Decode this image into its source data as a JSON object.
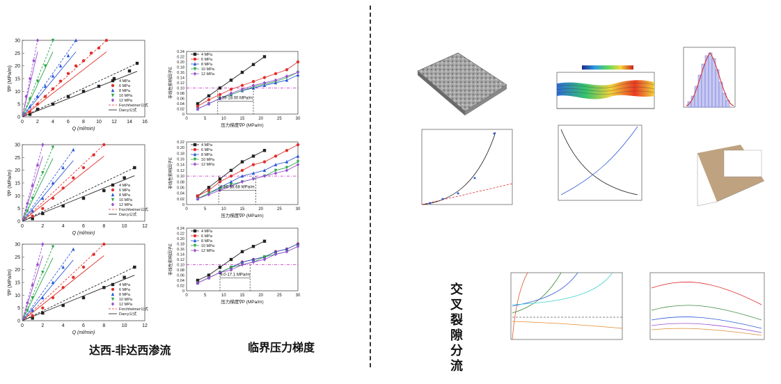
{
  "labels": {
    "left_caption": "达西-非达西渗流",
    "middle_caption": "临界压力梯度",
    "right_title": "交叉裂隙分流"
  },
  "legend_flow": [
    "4 MPa",
    "6 MPa",
    "8 MPa",
    "10 MPa",
    "12 MPa",
    "Forchheimer公式",
    "Darcy公式"
  ],
  "legend_crit": [
    "4 MPa",
    "6 MPa",
    "8 MPa",
    "10 MPa",
    "12 MPa"
  ],
  "colors": {
    "4": "#222222",
    "6": "#e0302c",
    "8": "#2a56d6",
    "10": "#2aa64a",
    "12": "#9a4fd0"
  },
  "flow_axes": {
    "ylabel": "∇P (MPa/m)",
    "xlabel": "Q (ml/min)",
    "yticks": [
      "0",
      "5",
      "10",
      "15",
      "20",
      "25",
      "30"
    ]
  },
  "flow_xticks": [
    [
      "0",
      "2",
      "4",
      "6",
      "8",
      "10",
      "12",
      "14",
      "16"
    ],
    [
      "0",
      "2",
      "4",
      "6",
      "8",
      "10",
      "12"
    ],
    [
      "0",
      "2",
      "4",
      "6",
      "8",
      "10",
      "12"
    ]
  ],
  "crit_axes": {
    "ylabel": "非线性影响因子E",
    "xlabel": "压力梯度∇P (MPa/m)",
    "xticks": [
      "0",
      "5",
      "10",
      "15",
      "20",
      "25",
      "30"
    ],
    "yticks": [
      "0",
      "0.02",
      "0.04",
      "0.06",
      "0.08",
      "0.10",
      "0.12",
      "0.14",
      "0.16",
      "0.18",
      "0.20",
      "0.22",
      "0.24"
    ]
  },
  "crit_ranges": [
    "8.39-18.00 MPa/m",
    "8.66-18.68 MPa/m",
    "9.0-17.1 MPa/m"
  ],
  "chart_data": [
    {
      "type": "line",
      "title": "",
      "xlabel": "Q (ml/min)",
      "ylabel": "∇P (MPa/m)",
      "xlim": [
        0,
        16
      ],
      "ylim": [
        0,
        30
      ],
      "series": [
        {
          "name": "4 MPa",
          "x": [
            1,
            2,
            4,
            6,
            8,
            10,
            12,
            14,
            15
          ],
          "y": [
            1,
            3,
            5,
            8,
            10,
            12,
            15,
            18,
            21
          ]
        },
        {
          "name": "6 MPa",
          "x": [
            1,
            2,
            3,
            4,
            5,
            6,
            7,
            8,
            9,
            10,
            11
          ],
          "y": [
            2,
            5,
            8,
            11,
            14,
            17,
            20,
            22,
            25,
            27,
            30
          ]
        },
        {
          "name": "8 MPa",
          "x": [
            1,
            2,
            3,
            4,
            5,
            6,
            7
          ],
          "y": [
            4,
            8,
            12,
            16,
            20,
            24,
            30
          ]
        },
        {
          "name": "10 MPa",
          "x": [
            1,
            2,
            3,
            4
          ],
          "y": [
            7,
            14,
            20,
            30
          ]
        },
        {
          "name": "12 MPa",
          "x": [
            0.5,
            1,
            1.5,
            2
          ],
          "y": [
            8,
            15,
            22,
            30
          ]
        }
      ]
    },
    {
      "type": "line",
      "title": "",
      "xlabel": "Q (ml/min)",
      "ylabel": "∇P (MPa/m)",
      "xlim": [
        0,
        12
      ],
      "ylim": [
        0,
        30
      ],
      "series": [
        {
          "name": "4 MPa",
          "x": [
            1,
            2,
            4,
            6,
            8,
            10,
            11
          ],
          "y": [
            1,
            3,
            6,
            9,
            12,
            17,
            21
          ]
        },
        {
          "name": "6 MPa",
          "x": [
            1,
            2,
            3,
            4,
            5,
            6,
            7,
            8
          ],
          "y": [
            2,
            5,
            9,
            13,
            17,
            21,
            26,
            30
          ]
        },
        {
          "name": "8 MPa",
          "x": [
            1,
            2,
            3,
            4,
            5
          ],
          "y": [
            4,
            9,
            15,
            21,
            28
          ]
        },
        {
          "name": "10 MPa",
          "x": [
            0.5,
            1,
            2,
            3
          ],
          "y": [
            4,
            9,
            19,
            29
          ]
        },
        {
          "name": "12 MPa",
          "x": [
            0.5,
            1,
            1.5,
            2
          ],
          "y": [
            7,
            14,
            22,
            30
          ]
        }
      ]
    },
    {
      "type": "line",
      "title": "",
      "xlabel": "Q (ml/min)",
      "ylabel": "∇P (MPa/m)",
      "xlim": [
        0,
        12
      ],
      "ylim": [
        0,
        30
      ],
      "series": [
        {
          "name": "4 MPa",
          "x": [
            1,
            2,
            4,
            6,
            8,
            10,
            11
          ],
          "y": [
            1,
            3,
            6,
            9,
            13,
            17,
            21
          ]
        },
        {
          "name": "6 MPa",
          "x": [
            1,
            2,
            3,
            4,
            5,
            6,
            7,
            8
          ],
          "y": [
            2,
            5,
            9,
            13,
            17,
            21,
            26,
            30
          ]
        },
        {
          "name": "8 MPa",
          "x": [
            1,
            2,
            3,
            4,
            5
          ],
          "y": [
            4,
            9,
            15,
            21,
            28
          ]
        },
        {
          "name": "10 MPa",
          "x": [
            0.5,
            1,
            2,
            3
          ],
          "y": [
            4,
            9,
            19,
            29
          ]
        },
        {
          "name": "12 MPa",
          "x": [
            0.5,
            1,
            1.5,
            2
          ],
          "y": [
            7,
            14,
            22,
            30
          ]
        }
      ]
    },
    {
      "type": "line",
      "title": "",
      "xlabel": "压力梯度∇P (MPa/m)",
      "ylabel": "非线性影响因子E",
      "xlim": [
        0,
        30
      ],
      "ylim": [
        0,
        0.24
      ],
      "series": [
        {
          "name": "4 MPa",
          "x": [
            3,
            6,
            9,
            12,
            15,
            18,
            21
          ],
          "y": [
            0.04,
            0.07,
            0.1,
            0.13,
            0.16,
            0.19,
            0.22
          ]
        },
        {
          "name": "6 MPa",
          "x": [
            3,
            6,
            9,
            12,
            15,
            18,
            21,
            24,
            27,
            30
          ],
          "y": [
            0.03,
            0.055,
            0.075,
            0.095,
            0.11,
            0.125,
            0.14,
            0.155,
            0.17,
            0.2
          ]
        },
        {
          "name": "8 MPa",
          "x": [
            3,
            6,
            9,
            12,
            15,
            18,
            21,
            24,
            27,
            30
          ],
          "y": [
            0.02,
            0.04,
            0.06,
            0.075,
            0.09,
            0.1,
            0.11,
            0.12,
            0.13,
            0.15
          ]
        },
        {
          "name": "10 MPa",
          "x": [
            3,
            6,
            9,
            12,
            15,
            18,
            21,
            24,
            27,
            30
          ],
          "y": [
            0.02,
            0.04,
            0.06,
            0.075,
            0.09,
            0.105,
            0.115,
            0.125,
            0.14,
            0.16
          ]
        },
        {
          "name": "12 MPa",
          "x": [
            3,
            6,
            9,
            12,
            15,
            18,
            21,
            24,
            27,
            30
          ],
          "y": [
            0.02,
            0.04,
            0.06,
            0.08,
            0.095,
            0.11,
            0.12,
            0.13,
            0.145,
            0.16
          ]
        }
      ]
    },
    {
      "type": "line",
      "title": "",
      "xlabel": "压力梯度∇P (MPa/m)",
      "ylabel": "非线性影响因子E",
      "xlim": [
        0,
        30
      ],
      "ylim": [
        0,
        0.22
      ],
      "series": [
        {
          "name": "4 MPa",
          "x": [
            3,
            6,
            9,
            12,
            15,
            18,
            21
          ],
          "y": [
            0.03,
            0.06,
            0.09,
            0.12,
            0.15,
            0.17,
            0.19
          ]
        },
        {
          "name": "6 MPa",
          "x": [
            3,
            6,
            9,
            12,
            15,
            18,
            21,
            24,
            27,
            30
          ],
          "y": [
            0.03,
            0.05,
            0.08,
            0.1,
            0.12,
            0.14,
            0.15,
            0.17,
            0.19,
            0.21
          ]
        },
        {
          "name": "8 MPa",
          "x": [
            3,
            6,
            9,
            12,
            15,
            18,
            21,
            24,
            27,
            30
          ],
          "y": [
            0.02,
            0.04,
            0.06,
            0.08,
            0.1,
            0.11,
            0.12,
            0.14,
            0.15,
            0.17
          ]
        },
        {
          "name": "10 MPa",
          "x": [
            3,
            6,
            9,
            12,
            15,
            18,
            21,
            24,
            27,
            30
          ],
          "y": [
            0.02,
            0.04,
            0.055,
            0.07,
            0.08,
            0.09,
            0.1,
            0.12,
            0.13,
            0.15
          ]
        },
        {
          "name": "12 MPa",
          "x": [
            3,
            6,
            9,
            12,
            15,
            18,
            21,
            24,
            27,
            30
          ],
          "y": [
            0.02,
            0.035,
            0.05,
            0.065,
            0.08,
            0.09,
            0.1,
            0.11,
            0.12,
            0.14
          ]
        }
      ]
    },
    {
      "type": "line",
      "title": "",
      "xlabel": "压力梯度∇P (MPa/m)",
      "ylabel": "非线性影响因子E",
      "xlim": [
        0,
        30
      ],
      "ylim": [
        0,
        0.24
      ],
      "series": [
        {
          "name": "4 MPa",
          "x": [
            3,
            6,
            9,
            12,
            15,
            18,
            21
          ],
          "y": [
            0.04,
            0.06,
            0.09,
            0.12,
            0.15,
            0.17,
            0.19
          ]
        },
        {
          "name": "6 MPa",
          "x": [
            3,
            6,
            9,
            12,
            15,
            18,
            21,
            24,
            27,
            30
          ],
          "y": [
            0.03,
            0.05,
            0.07,
            0.09,
            0.11,
            0.12,
            0.13,
            0.15,
            0.16,
            0.18
          ]
        },
        {
          "name": "8 MPa",
          "x": [
            3,
            6,
            9,
            12,
            15,
            18,
            21,
            24,
            27,
            30
          ],
          "y": [
            0.03,
            0.05,
            0.07,
            0.09,
            0.11,
            0.12,
            0.13,
            0.15,
            0.16,
            0.18
          ]
        },
        {
          "name": "10 MPa",
          "x": [
            3,
            6,
            9,
            12,
            15,
            18,
            21,
            24,
            27,
            30
          ],
          "y": [
            0.03,
            0.05,
            0.07,
            0.09,
            0.1,
            0.11,
            0.13,
            0.14,
            0.15,
            0.17
          ]
        },
        {
          "name": "12 MPa",
          "x": [
            3,
            6,
            9,
            12,
            15,
            18,
            21,
            24,
            27,
            30
          ],
          "y": [
            0.03,
            0.05,
            0.07,
            0.08,
            0.1,
            0.11,
            0.12,
            0.14,
            0.15,
            0.17
          ]
        }
      ]
    }
  ]
}
